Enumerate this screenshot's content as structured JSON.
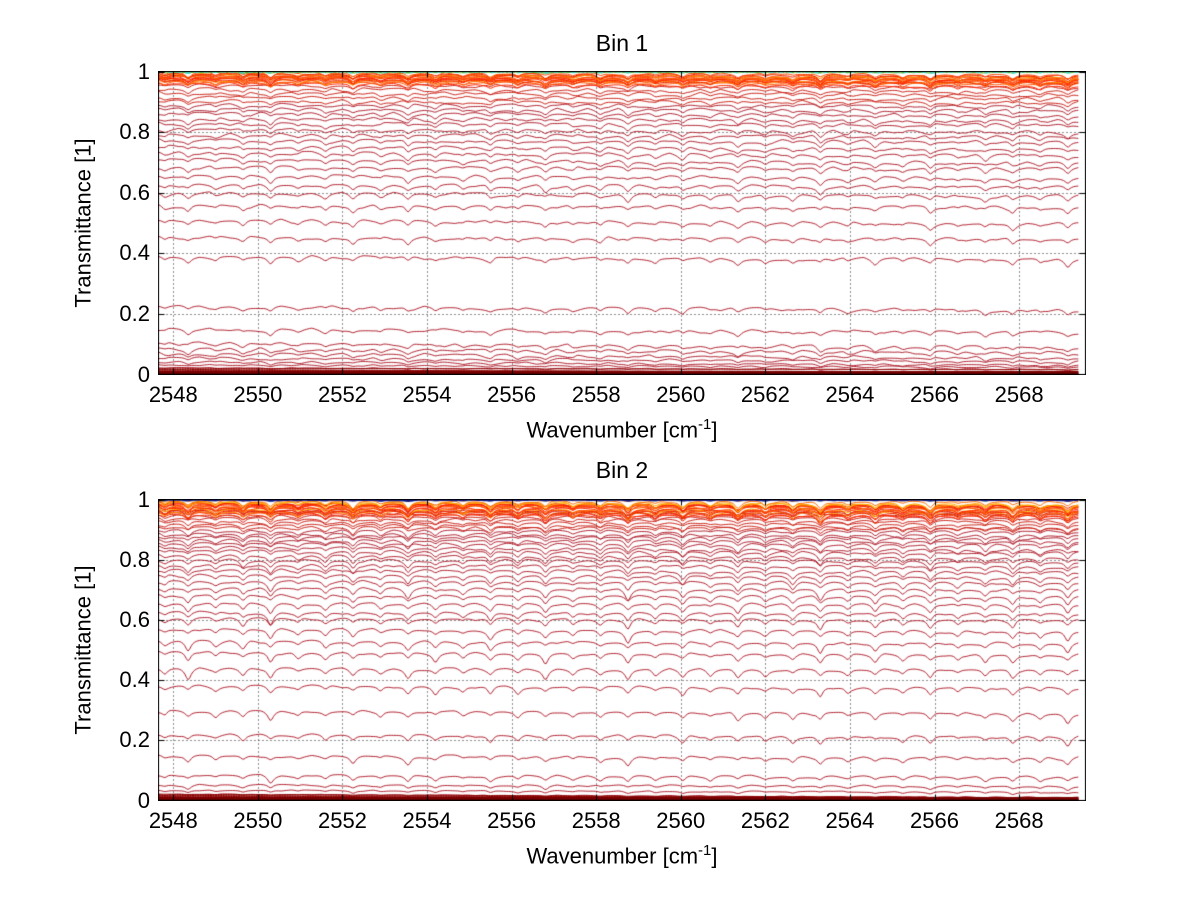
{
  "figure": {
    "background": "#ffffff",
    "text_color": "#000000",
    "grid_color": "#222222",
    "axis_color": "#000000"
  },
  "chart_data": [
    {
      "type": "line",
      "bin": 1,
      "seed": 11,
      "title": "Bin 1",
      "ylabel": "Transmittance [1]",
      "xlabel": "Wavenumber [cm^-1]",
      "xlabel_parts": {
        "pre": "Wavenumber [cm",
        "sup": "-1",
        "post": "]"
      },
      "xlim": [
        2547.65,
        2569.57
      ],
      "ylim": [
        0,
        1
      ],
      "x_data_end": 2569.4,
      "x_ticks": [
        2548,
        2550,
        2552,
        2554,
        2556,
        2558,
        2560,
        2562,
        2564,
        2566,
        2568
      ],
      "x_tick_labels": [
        "2548",
        "2550",
        "2552",
        "2554",
        "2556",
        "2558",
        "2560",
        "2562",
        "2564",
        "2566",
        "2568"
      ],
      "y_ticks": [
        1,
        0.8,
        0.6,
        0.4,
        0.2,
        0
      ],
      "y_tick_labels": [
        "1",
        "0.8",
        "0.6",
        "0.4",
        "0.2",
        "0"
      ],
      "grid": "dotted",
      "legend": "none",
      "curve_color": "#b01f2e",
      "curve_color_upper": "#cc2218",
      "noise_amp": 0.0065,
      "dip_scale": 0.018,
      "line_half_width": 0.08,
      "tilt_range": [
        -0.004,
        -0.014
      ],
      "series_levels": [
        0.956,
        0.943,
        0.93,
        0.917,
        0.904,
        0.891,
        0.877,
        0.862,
        0.846,
        0.829,
        0.811,
        0.793,
        0.774,
        0.754,
        0.733,
        0.711,
        0.686,
        0.658,
        0.627,
        0.6,
        0.558,
        0.51,
        0.455,
        0.39,
        0.225,
        0.15,
        0.103,
        0.085,
        0.069,
        0.055,
        0.043,
        0.032,
        0.022
      ],
      "top_band": {
        "levels": [
          0.963,
          0.966,
          0.969,
          0.972,
          0.975,
          0.977,
          0.979,
          0.981,
          0.983,
          0.985,
          0.987,
          0.989,
          0.991,
          0.993,
          0.995,
          0.997
        ],
        "colors": [
          "#ff2400",
          "#f03008",
          "#ff5500",
          "#ff2400",
          "#ff8c00",
          "#ee2200",
          "#ffc800",
          "#ff4500",
          "#ff2400",
          "#ff6a00"
        ],
        "cap_lines": [
          {
            "level": 0.9985,
            "color": "#55b944",
            "width": 1.5,
            "dash": null
          },
          {
            "level": 0.9995,
            "color": "#cfe26a",
            "width": 1,
            "dash": [
              3,
              4
            ]
          },
          {
            "level": 1.0,
            "color": "#45d8c8",
            "width": 2,
            "dash": [
              5,
              4
            ]
          }
        ]
      },
      "bottom_band": {
        "levels": [
          0.021,
          0.017,
          0.014,
          0.011,
          0.009,
          0.007,
          0.005,
          0.0035,
          0.002,
          0.001
        ],
        "color": "#8b0000",
        "thick_level": 0.005,
        "thick_color": "#7a0000",
        "base_color": "#5a0000"
      },
      "absorption_lines": [
        {
          "c": 2547.8,
          "s": 0.5
        },
        {
          "c": 2548.35,
          "s": 0.9
        },
        {
          "c": 2549.0,
          "s": 0.55
        },
        {
          "c": 2549.65,
          "s": 0.8
        },
        {
          "c": 2550.3,
          "s": 1.0
        },
        {
          "c": 2550.95,
          "s": 0.5
        },
        {
          "c": 2551.6,
          "s": 0.7
        },
        {
          "c": 2552.25,
          "s": 0.9
        },
        {
          "c": 2552.9,
          "s": 0.55
        },
        {
          "c": 2553.55,
          "s": 1.0
        },
        {
          "c": 2554.2,
          "s": 0.7
        },
        {
          "c": 2554.85,
          "s": 0.5
        },
        {
          "c": 2555.5,
          "s": 0.8
        },
        {
          "c": 2556.15,
          "s": 0.6
        },
        {
          "c": 2556.8,
          "s": 0.9
        },
        {
          "c": 2557.45,
          "s": 0.5
        },
        {
          "c": 2558.1,
          "s": 0.7
        },
        {
          "c": 2558.75,
          "s": 1.0
        },
        {
          "c": 2559.4,
          "s": 0.6
        },
        {
          "c": 2560.05,
          "s": 0.8
        },
        {
          "c": 2560.7,
          "s": 0.5
        },
        {
          "c": 2561.35,
          "s": 0.9
        },
        {
          "c": 2562.0,
          "s": 0.6
        },
        {
          "c": 2562.65,
          "s": 0.7
        },
        {
          "c": 2563.3,
          "s": 1.0
        },
        {
          "c": 2563.95,
          "s": 0.5
        },
        {
          "c": 2564.6,
          "s": 0.8
        },
        {
          "c": 2565.25,
          "s": 0.6
        },
        {
          "c": 2565.9,
          "s": 0.9
        },
        {
          "c": 2566.55,
          "s": 0.5
        },
        {
          "c": 2567.2,
          "s": 0.7
        },
        {
          "c": 2567.85,
          "s": 0.8
        },
        {
          "c": 2568.5,
          "s": 0.6
        },
        {
          "c": 2569.15,
          "s": 0.9
        }
      ]
    },
    {
      "type": "line",
      "bin": 2,
      "seed": 22,
      "title": "Bin 2",
      "ylabel": "Transmittance [1]",
      "xlabel": "Wavenumber [cm^-1]",
      "xlabel_parts": {
        "pre": "Wavenumber [cm",
        "sup": "-1",
        "post": "]"
      },
      "xlim": [
        2547.65,
        2569.57
      ],
      "ylim": [
        0,
        1
      ],
      "x_data_end": 2569.4,
      "x_ticks": [
        2548,
        2550,
        2552,
        2554,
        2556,
        2558,
        2560,
        2562,
        2564,
        2566,
        2568
      ],
      "x_tick_labels": [
        "2548",
        "2550",
        "2552",
        "2554",
        "2556",
        "2558",
        "2560",
        "2562",
        "2564",
        "2566",
        "2568"
      ],
      "y_ticks": [
        1,
        0.8,
        0.6,
        0.4,
        0.2,
        0
      ],
      "y_tick_labels": [
        "1",
        "0.8",
        "0.6",
        "0.4",
        "0.2",
        "0"
      ],
      "grid": "dotted",
      "legend": "none",
      "curve_color": "#b01f2e",
      "curve_color_upper": "#cc2218",
      "noise_amp": 0.005,
      "dip_scale": 0.028,
      "line_half_width": 0.08,
      "tilt_range": [
        -0.004,
        -0.012
      ],
      "series_levels": [
        0.968,
        0.958,
        0.948,
        0.938,
        0.928,
        0.918,
        0.908,
        0.898,
        0.888,
        0.877,
        0.866,
        0.855,
        0.843,
        0.83,
        0.816,
        0.801,
        0.785,
        0.768,
        0.75,
        0.73,
        0.708,
        0.684,
        0.657,
        0.627,
        0.607,
        0.572,
        0.532,
        0.495,
        0.44,
        0.382,
        0.3,
        0.22,
        0.15,
        0.085,
        0.052,
        0.035,
        0.022,
        0.012
      ],
      "top_band": {
        "levels": [
          0.952,
          0.956,
          0.96,
          0.964,
          0.967,
          0.97,
          0.973,
          0.976,
          0.979,
          0.981,
          0.983,
          0.985,
          0.987,
          0.989,
          0.991,
          0.993,
          0.995,
          0.997
        ],
        "colors": [
          "#ff2400",
          "#f03008",
          "#ff5500",
          "#ff2400",
          "#ff8c00",
          "#ee2200",
          "#ffb000",
          "#ff4500",
          "#ff2400",
          "#ff6a00"
        ],
        "cap_lines": [
          {
            "level": 0.997,
            "color": "#e87820",
            "width": 1,
            "dash": null
          },
          {
            "level": 0.999,
            "color": "#79b5e3",
            "width": 2,
            "dash": [
              6,
              5
            ]
          },
          {
            "level": 1.0,
            "color": "#101a8c",
            "width": 2.5,
            "dash": null
          }
        ]
      },
      "bottom_band": {
        "levels": [
          0.021,
          0.017,
          0.014,
          0.011,
          0.009,
          0.007,
          0.005,
          0.0035,
          0.002,
          0.001
        ],
        "color": "#8b0000",
        "thick_level": 0.005,
        "thick_color": "#7a0000",
        "base_color": "#5a0000"
      },
      "absorption_lines": [
        {
          "c": 2547.8,
          "s": 0.5
        },
        {
          "c": 2548.35,
          "s": 0.9
        },
        {
          "c": 2549.0,
          "s": 0.55
        },
        {
          "c": 2549.65,
          "s": 0.8
        },
        {
          "c": 2550.3,
          "s": 1.0
        },
        {
          "c": 2550.95,
          "s": 0.5
        },
        {
          "c": 2551.6,
          "s": 0.7
        },
        {
          "c": 2552.25,
          "s": 0.9
        },
        {
          "c": 2552.9,
          "s": 0.55
        },
        {
          "c": 2553.55,
          "s": 1.0
        },
        {
          "c": 2554.2,
          "s": 0.7
        },
        {
          "c": 2554.85,
          "s": 0.5
        },
        {
          "c": 2555.5,
          "s": 0.8
        },
        {
          "c": 2556.15,
          "s": 0.6
        },
        {
          "c": 2556.8,
          "s": 0.9
        },
        {
          "c": 2557.45,
          "s": 0.5
        },
        {
          "c": 2558.1,
          "s": 0.7
        },
        {
          "c": 2558.75,
          "s": 1.0
        },
        {
          "c": 2559.4,
          "s": 0.6
        },
        {
          "c": 2560.05,
          "s": 0.8
        },
        {
          "c": 2560.7,
          "s": 0.5
        },
        {
          "c": 2561.35,
          "s": 0.9
        },
        {
          "c": 2562.0,
          "s": 0.6
        },
        {
          "c": 2562.65,
          "s": 0.7
        },
        {
          "c": 2563.3,
          "s": 1.0
        },
        {
          "c": 2563.95,
          "s": 0.5
        },
        {
          "c": 2564.6,
          "s": 0.8
        },
        {
          "c": 2565.25,
          "s": 0.6
        },
        {
          "c": 2565.9,
          "s": 0.9
        },
        {
          "c": 2566.55,
          "s": 0.5
        },
        {
          "c": 2567.2,
          "s": 0.7
        },
        {
          "c": 2567.85,
          "s": 0.8
        },
        {
          "c": 2568.5,
          "s": 0.6
        },
        {
          "c": 2569.15,
          "s": 0.9
        }
      ]
    }
  ]
}
